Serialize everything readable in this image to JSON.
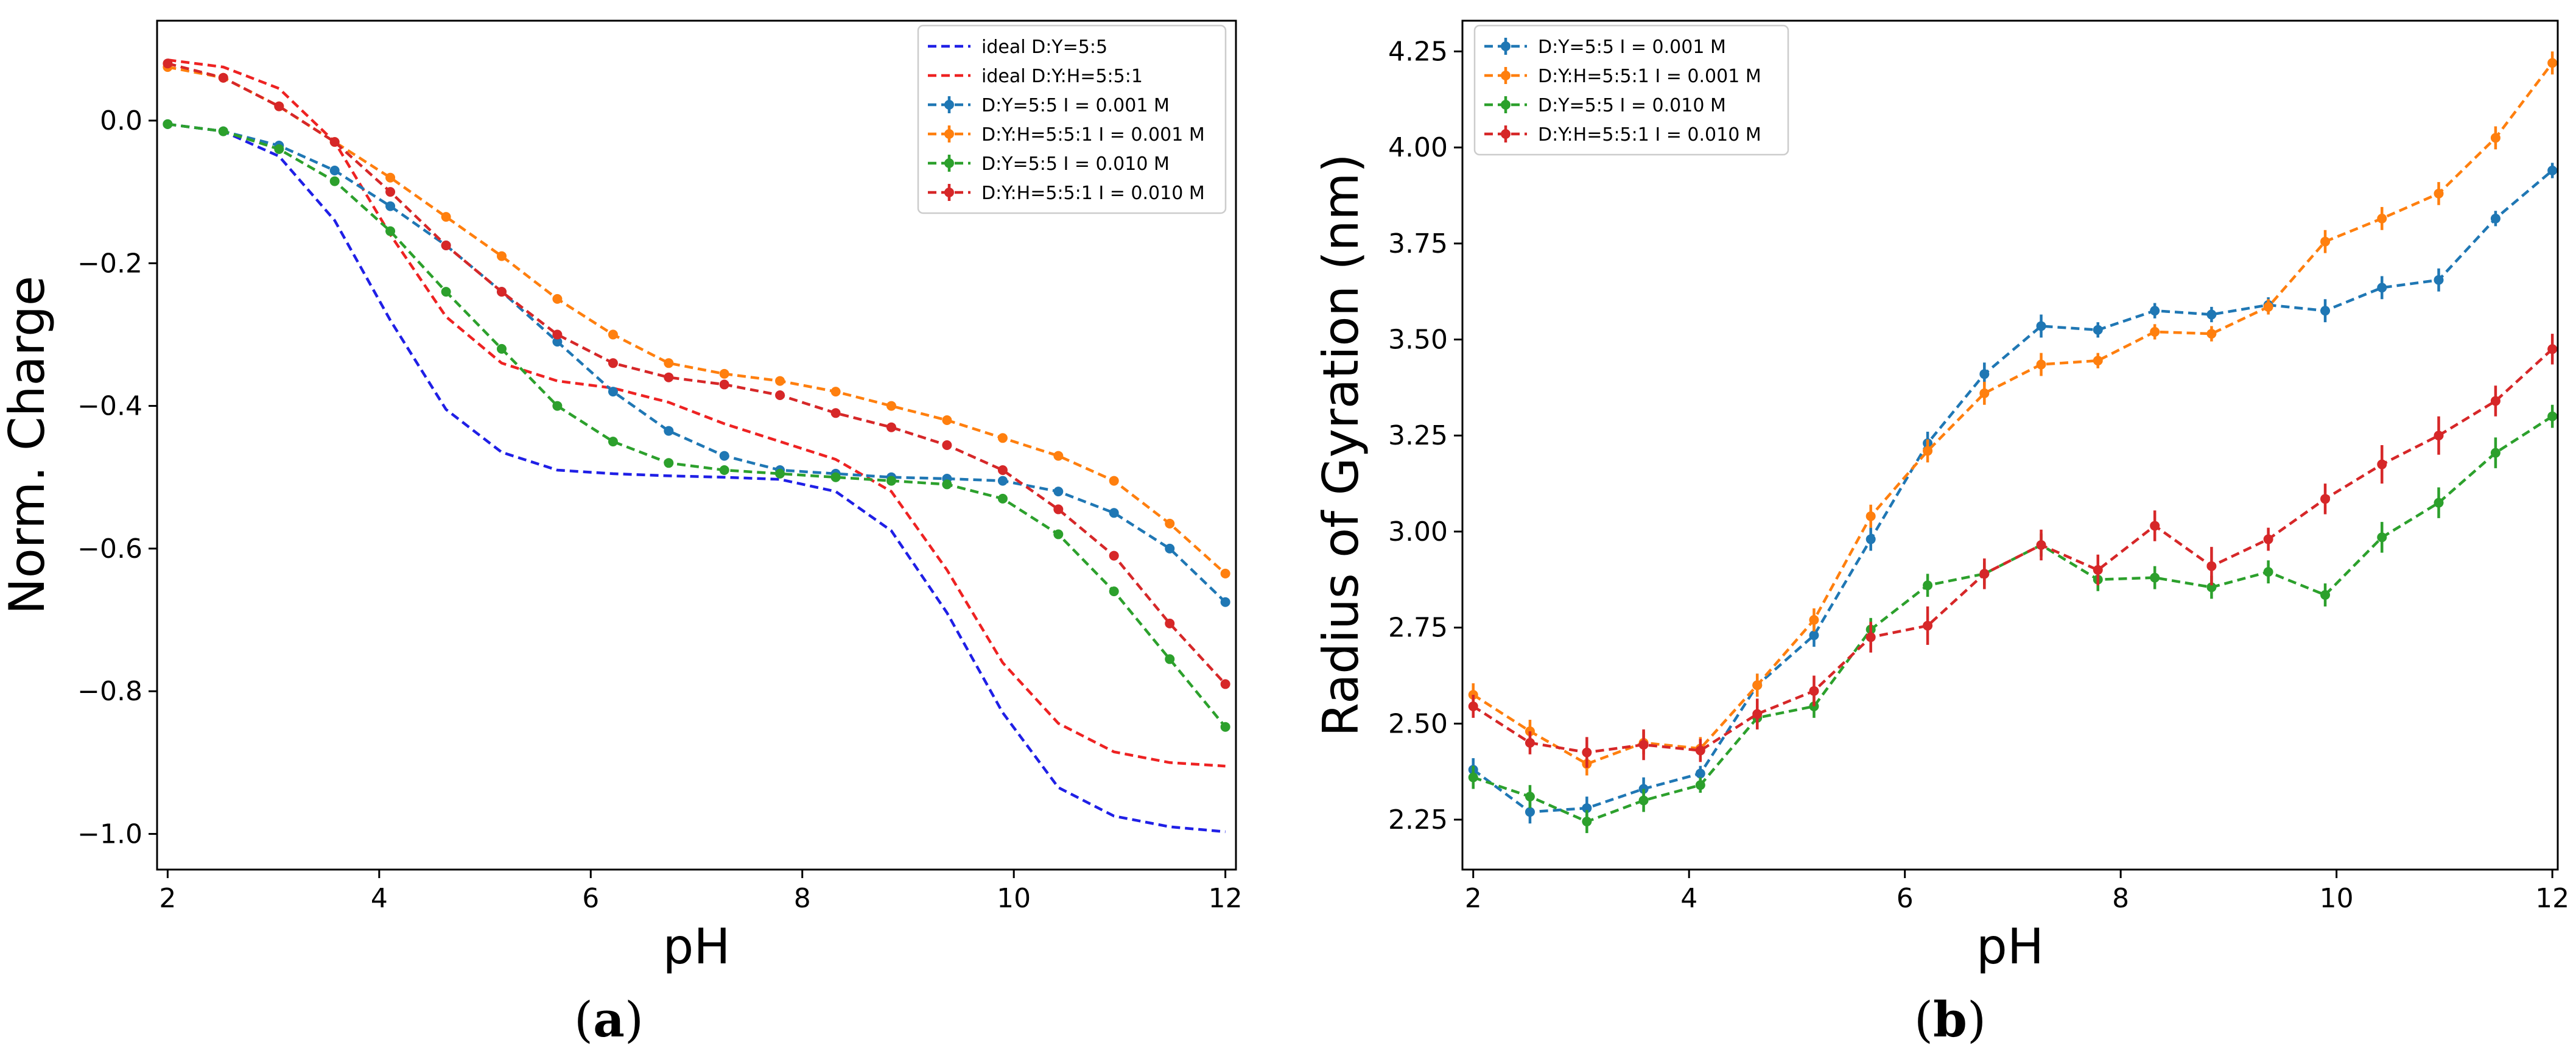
{
  "figure": {
    "panel_labels": [
      {
        "open": "(",
        "letter": "a",
        "close": ")"
      },
      {
        "open": "(",
        "letter": "b",
        "close": ")"
      }
    ]
  },
  "colors": {
    "ideal_blue": "#1f1fe6",
    "ideal_red": "#ee2222",
    "tab_blue": "#1f77b4",
    "tab_orange": "#ff7f0e",
    "tab_green": "#2ca02c",
    "tab_red": "#d62728"
  },
  "chart_data": [
    {
      "type": "line",
      "panel": "a",
      "title": "",
      "xlabel": "pH",
      "ylabel": "Norm. Charge",
      "xlim": [
        1.9,
        12.1
      ],
      "ylim": [
        -1.05,
        0.14
      ],
      "xticks": [
        2,
        4,
        6,
        8,
        10,
        12
      ],
      "yticks": [
        0.0,
        -0.2,
        -0.4,
        -0.6,
        -0.8,
        -1.0
      ],
      "ytick_labels": [
        "0.0",
        "−0.2",
        "−0.4",
        "−0.6",
        "−0.8",
        "−1.0"
      ],
      "grid": false,
      "legend": "upper right",
      "x": [
        2.0,
        2.526,
        3.053,
        3.579,
        4.105,
        4.632,
        5.158,
        5.684,
        6.211,
        6.737,
        7.263,
        7.789,
        8.316,
        8.842,
        9.368,
        9.895,
        10.421,
        10.947,
        11.474,
        12.0
      ],
      "series": [
        {
          "name": "ideal D:Y=5:5",
          "color": "#1f1fe6",
          "markers": false,
          "errorbars": false,
          "values": [
            -0.005,
            -0.015,
            -0.05,
            -0.14,
            -0.28,
            -0.405,
            -0.465,
            -0.49,
            -0.495,
            -0.498,
            -0.5,
            -0.503,
            -0.52,
            -0.575,
            -0.69,
            -0.83,
            -0.935,
            -0.975,
            -0.99,
            -0.997
          ]
        },
        {
          "name": "ideal D:Y:H=5:5:1",
          "color": "#ee2222",
          "markers": false,
          "errorbars": false,
          "values": [
            0.085,
            0.075,
            0.045,
            -0.03,
            -0.16,
            -0.275,
            -0.34,
            -0.365,
            -0.375,
            -0.395,
            -0.425,
            -0.45,
            -0.475,
            -0.52,
            -0.63,
            -0.76,
            -0.845,
            -0.885,
            -0.9,
            -0.905
          ]
        },
        {
          "name": "D:Y=5:5 I = 0.001 M",
          "color": "#1f77b4",
          "markers": true,
          "errorbars": true,
          "values": [
            -0.005,
            -0.015,
            -0.035,
            -0.07,
            -0.12,
            -0.175,
            -0.24,
            -0.31,
            -0.38,
            -0.435,
            -0.47,
            -0.49,
            -0.495,
            -0.5,
            -0.502,
            -0.505,
            -0.52,
            -0.55,
            -0.6,
            -0.675
          ]
        },
        {
          "name": "D:Y:H=5:5:1 I = 0.001 M",
          "color": "#ff7f0e",
          "markers": true,
          "errorbars": true,
          "values": [
            0.075,
            0.06,
            0.02,
            -0.03,
            -0.08,
            -0.135,
            -0.19,
            -0.25,
            -0.3,
            -0.34,
            -0.355,
            -0.365,
            -0.38,
            -0.4,
            -0.42,
            -0.445,
            -0.47,
            -0.505,
            -0.565,
            -0.635
          ]
        },
        {
          "name": "D:Y=5:5 I = 0.010 M",
          "color": "#2ca02c",
          "markers": true,
          "errorbars": true,
          "values": [
            -0.005,
            -0.015,
            -0.04,
            -0.085,
            -0.155,
            -0.24,
            -0.32,
            -0.4,
            -0.45,
            -0.48,
            -0.49,
            -0.495,
            -0.5,
            -0.505,
            -0.51,
            -0.53,
            -0.58,
            -0.66,
            -0.755,
            -0.85
          ]
        },
        {
          "name": "D:Y:H=5:5:1 I = 0.010 M",
          "color": "#d62728",
          "markers": true,
          "errorbars": true,
          "values": [
            0.08,
            0.06,
            0.02,
            -0.03,
            -0.1,
            -0.175,
            -0.24,
            -0.3,
            -0.34,
            -0.36,
            -0.37,
            -0.385,
            -0.41,
            -0.43,
            -0.455,
            -0.49,
            -0.545,
            -0.61,
            -0.705,
            -0.79
          ]
        }
      ]
    },
    {
      "type": "line",
      "panel": "b",
      "title": "",
      "xlabel": "pH",
      "ylabel": "Radius of Gyration (nm)",
      "xlim": [
        1.9,
        12.05
      ],
      "ylim": [
        2.12,
        4.33
      ],
      "xticks": [
        2,
        4,
        6,
        8,
        10,
        12
      ],
      "yticks": [
        2.25,
        2.5,
        2.75,
        3.0,
        3.25,
        3.5,
        3.75,
        4.0,
        4.25
      ],
      "ytick_labels": [
        "2.25",
        "2.50",
        "2.75",
        "3.00",
        "3.25",
        "3.50",
        "3.75",
        "4.00",
        "4.25"
      ],
      "grid": false,
      "legend": "upper left",
      "x": [
        2.0,
        2.526,
        3.053,
        3.579,
        4.105,
        4.632,
        5.158,
        5.684,
        6.211,
        6.737,
        7.263,
        7.789,
        8.316,
        8.842,
        9.368,
        9.895,
        10.421,
        10.947,
        11.474,
        12.0
      ],
      "series": [
        {
          "name": "D:Y=5:5 I = 0.001 M",
          "color": "#1f77b4",
          "markers": true,
          "errorbars": true,
          "values": [
            2.38,
            2.27,
            2.28,
            2.33,
            2.37,
            2.6,
            2.73,
            2.98,
            3.23,
            3.41,
            3.535,
            3.525,
            3.575,
            3.565,
            3.59,
            3.575,
            3.635,
            3.655,
            3.815,
            3.94
          ],
          "errors": [
            0.03,
            0.03,
            0.03,
            0.03,
            0.02,
            0.03,
            0.03,
            0.03,
            0.03,
            0.03,
            0.03,
            0.02,
            0.02,
            0.02,
            0.02,
            0.03,
            0.03,
            0.03,
            0.02,
            0.02
          ]
        },
        {
          "name": "D:Y:H=5:5:1 I = 0.001 M",
          "color": "#ff7f0e",
          "markers": true,
          "errorbars": true,
          "values": [
            2.575,
            2.48,
            2.395,
            2.45,
            2.435,
            2.6,
            2.77,
            3.04,
            3.21,
            3.36,
            3.435,
            3.445,
            3.52,
            3.515,
            3.585,
            3.755,
            3.815,
            3.88,
            4.025,
            4.22
          ],
          "errors": [
            0.03,
            0.03,
            0.03,
            0.03,
            0.03,
            0.03,
            0.03,
            0.03,
            0.03,
            0.03,
            0.03,
            0.02,
            0.02,
            0.02,
            0.02,
            0.03,
            0.03,
            0.03,
            0.03,
            0.03
          ]
        },
        {
          "name": "D:Y=5:5 I = 0.010 M",
          "color": "#2ca02c",
          "markers": true,
          "errorbars": true,
          "values": [
            2.36,
            2.31,
            2.245,
            2.3,
            2.34,
            2.515,
            2.545,
            2.745,
            2.86,
            2.89,
            2.965,
            2.875,
            2.88,
            2.855,
            2.895,
            2.835,
            2.985,
            3.075,
            3.205,
            3.3
          ],
          "errors": [
            0.03,
            0.03,
            0.03,
            0.03,
            0.02,
            0.03,
            0.03,
            0.03,
            0.03,
            0.03,
            0.03,
            0.03,
            0.03,
            0.03,
            0.03,
            0.03,
            0.04,
            0.04,
            0.04,
            0.03
          ]
        },
        {
          "name": "D:Y:H=5:5:1 I = 0.010 M",
          "color": "#d62728",
          "markers": true,
          "errorbars": true,
          "values": [
            2.545,
            2.45,
            2.425,
            2.445,
            2.43,
            2.525,
            2.585,
            2.725,
            2.755,
            2.89,
            2.965,
            2.9,
            3.015,
            2.91,
            2.98,
            3.085,
            3.175,
            3.25,
            3.34,
            3.475
          ],
          "errors": [
            0.03,
            0.03,
            0.04,
            0.04,
            0.03,
            0.04,
            0.04,
            0.04,
            0.05,
            0.04,
            0.04,
            0.04,
            0.04,
            0.05,
            0.03,
            0.04,
            0.05,
            0.05,
            0.04,
            0.04
          ]
        }
      ]
    }
  ]
}
